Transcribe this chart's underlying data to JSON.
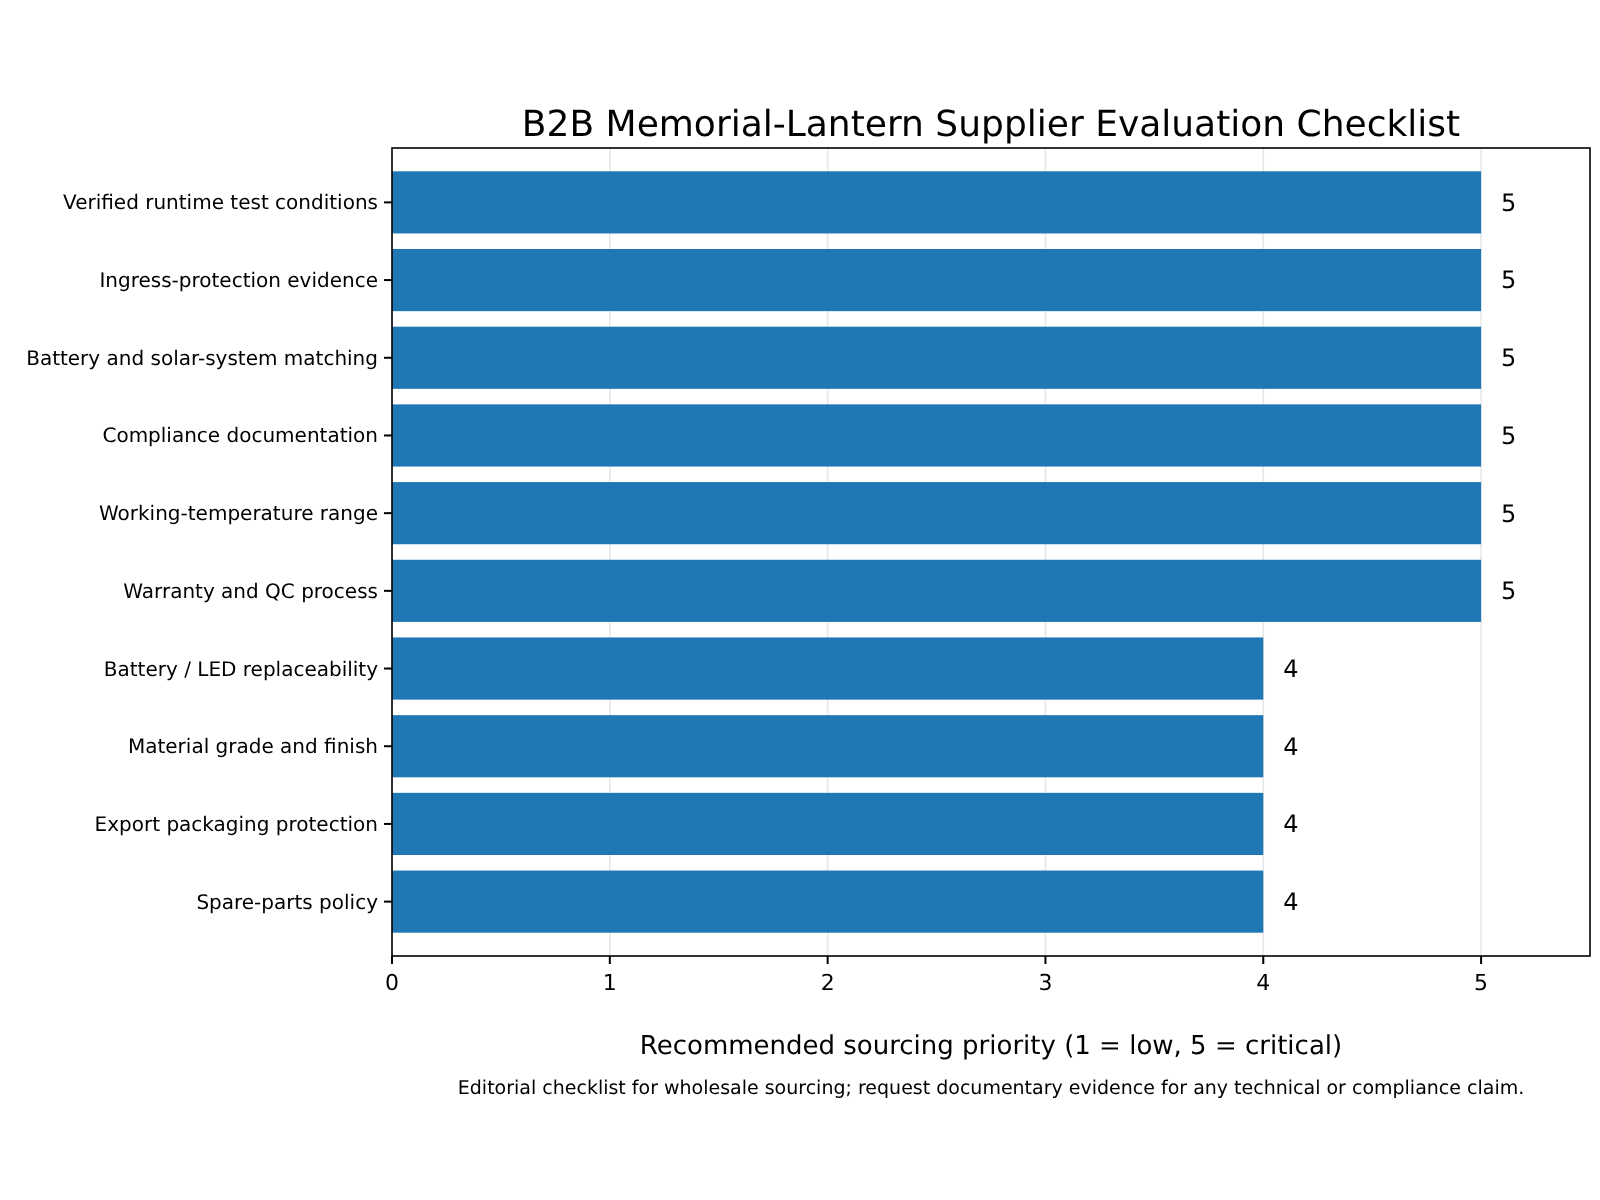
{
  "chart_data": {
    "type": "bar",
    "orientation": "horizontal",
    "title": "B2B Memorial-Lantern Supplier Evaluation Checklist",
    "xlabel": "Recommended sourcing priority (1 = low, 5 = critical)",
    "categories": [
      "Verified runtime test conditions",
      "Ingress-protection evidence",
      "Battery and solar-system matching",
      "Compliance documentation",
      "Working-temperature range",
      "Warranty and QC process",
      "Battery / LED replaceability",
      "Material grade and finish",
      "Export packaging protection",
      "Spare-parts policy"
    ],
    "values": [
      5,
      5,
      5,
      5,
      5,
      5,
      4,
      4,
      4,
      4
    ],
    "color": "#1f77b4",
    "xlim": [
      0,
      5.5
    ],
    "xticks": [
      0,
      1,
      2,
      3,
      4,
      5
    ],
    "grid": "x",
    "data_labels": true,
    "annotations": [
      "Editorial checklist for wholesale sourcing; request documentary evidence for any technical or compliance claim."
    ]
  }
}
